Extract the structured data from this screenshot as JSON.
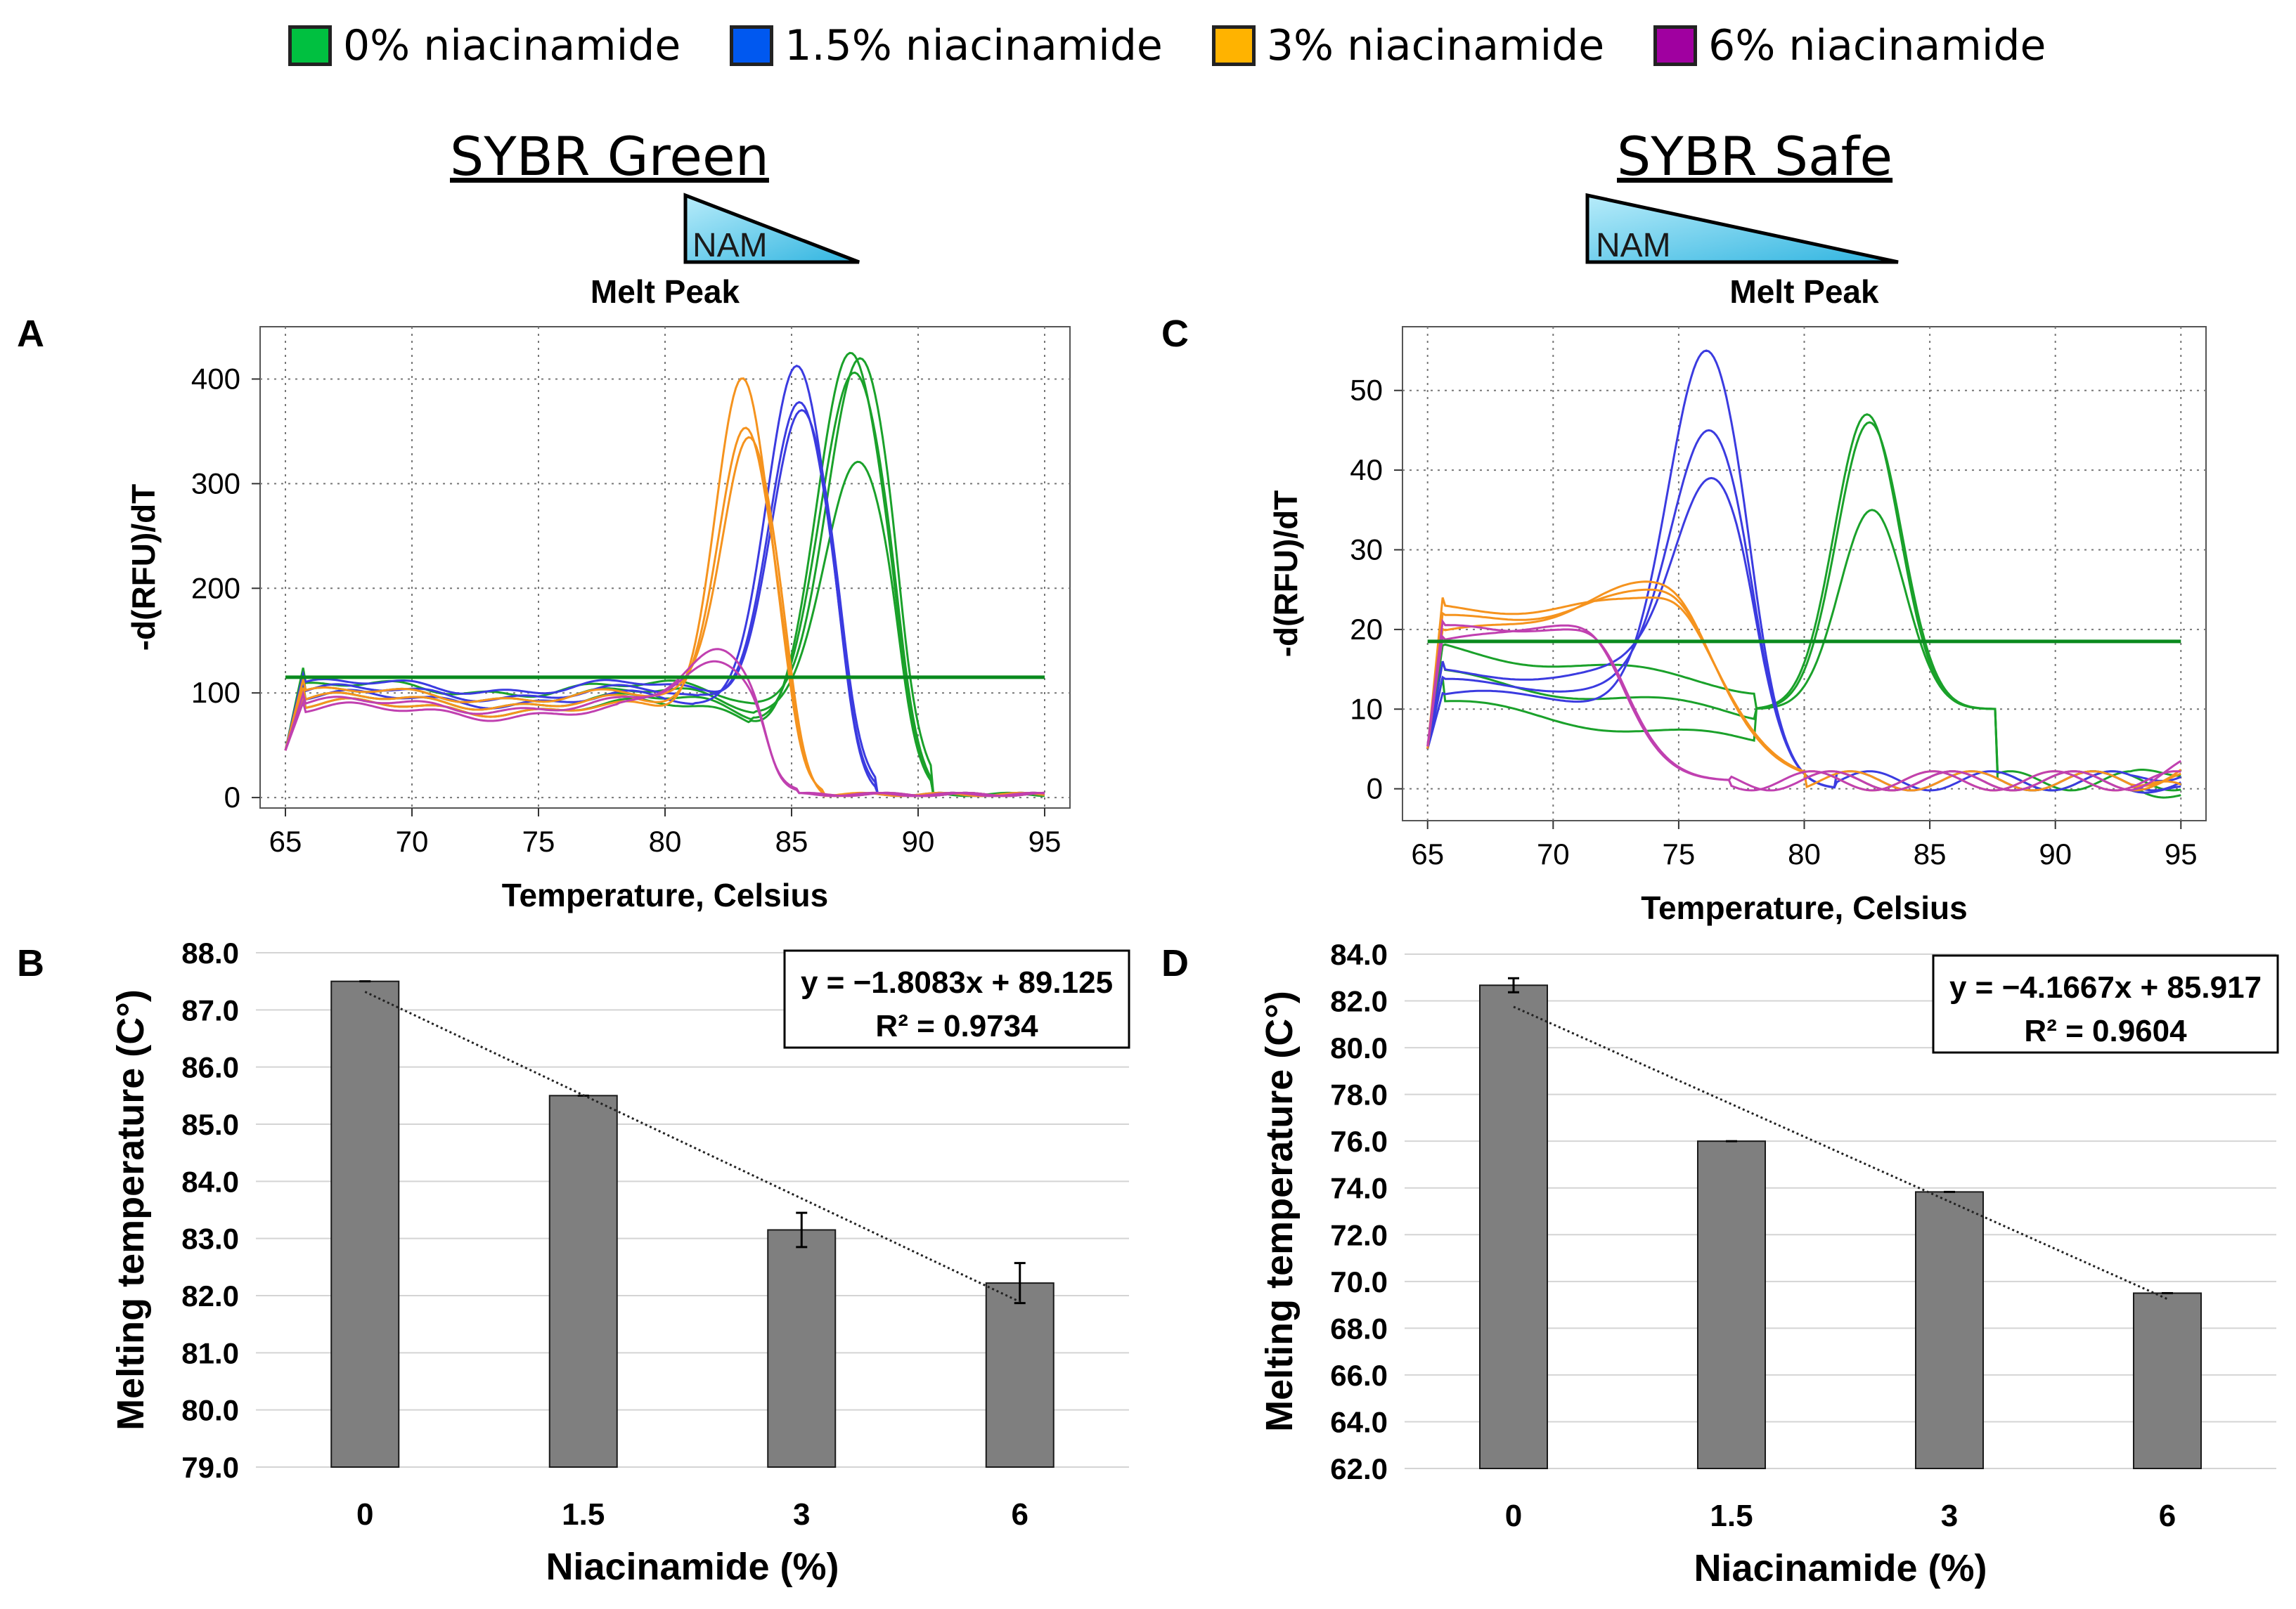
{
  "legend": [
    {
      "label": "0% niacinamide",
      "color": "#00c040"
    },
    {
      "label": "1.5% niacinamide",
      "color": "#0058f0"
    },
    {
      "label": "3% niacinamide",
      "color": "#ffb300"
    },
    {
      "label": "6% niacinamide",
      "color": "#a000a0"
    }
  ],
  "panels": {
    "left_title": "SYBR Green",
    "right_title": "SYBR Safe",
    "nam_label": "NAM",
    "letters": [
      "A",
      "B",
      "C",
      "D"
    ]
  },
  "chart_data": [
    {
      "id": "A",
      "type": "line",
      "title": "Melt Peak",
      "xlabel": "Temperature, Celsius",
      "ylabel": "-d(RFU)/dT",
      "xlim": [
        64,
        96
      ],
      "ylim": [
        -10,
        450
      ],
      "xticks": [
        65,
        70,
        75,
        80,
        85,
        90,
        95
      ],
      "yticks": [
        0,
        100,
        200,
        300,
        400
      ],
      "grid": true,
      "threshold": 115,
      "threshold_color": "#0a8a1e",
      "series": [
        {
          "name": "0% niacinamide",
          "color": "#1aa12a",
          "baseline": 95,
          "start": 112,
          "peak_x": 87.5,
          "peaks": [
            440,
            415,
            320,
            410
          ],
          "sigma": 1.3,
          "dip": 15
        },
        {
          "name": "1.5% niacinamide",
          "color": "#3b3be0",
          "baseline": 100,
          "start": 110,
          "peak_x": 85.3,
          "peaks": [
            425,
            382,
            370
          ],
          "sigma": 1.2,
          "dip": 10
        },
        {
          "name": "3% niacinamide",
          "color": "#f5931e",
          "baseline": 92,
          "start": 105,
          "peak_x": 83.2,
          "peaks": [
            410,
            360,
            345
          ],
          "sigma": 1.05,
          "dip": 5
        },
        {
          "name": "6% niacinamide",
          "color": "#c040b0",
          "baseline": 85,
          "start": 95,
          "peak_x": 82.2,
          "peaks": [
            142,
            125
          ],
          "sigma": 1.4,
          "dip": 0
        }
      ]
    },
    {
      "id": "B",
      "type": "bar",
      "xlabel": "Niacinamide (%)",
      "ylabel": "Melting temperature (C°)",
      "categories": [
        "0",
        "1.5",
        "3",
        "6"
      ],
      "values": [
        87.5,
        85.5,
        83.15,
        82.22
      ],
      "errors": [
        0.0,
        0.0,
        0.3,
        0.35
      ],
      "ylim": [
        79.0,
        88.0
      ],
      "yticks": [
        79.0,
        80.0,
        81.0,
        82.0,
        83.0,
        84.0,
        85.0,
        86.0,
        87.0,
        88.0
      ],
      "trend": {
        "slope": -1.8083,
        "intercept": 89.125
      },
      "equation": "y = −1.8083x + 89.125",
      "r2": "R² = 0.9734"
    },
    {
      "id": "C",
      "type": "line",
      "title": "Melt Peak",
      "xlabel": "Temperature, Celsius",
      "ylabel": "-d(RFU)/dT",
      "xlim": [
        64,
        96
      ],
      "ylim": [
        -4,
        58
      ],
      "xticks": [
        65,
        70,
        75,
        80,
        85,
        90,
        95
      ],
      "yticks": [
        0,
        10,
        20,
        30,
        40,
        50
      ],
      "grid": true,
      "threshold": 18.5,
      "threshold_color": "#0a8a1e",
      "series": [
        {
          "name": "0% niacinamide",
          "color": "#1aa12a",
          "baseline": 14,
          "start": 16,
          "peak_x": 82.6,
          "peaks": [
            47,
            46,
            35
          ],
          "sigma": 1.3,
          "drop_x": 76,
          "low": 9
        },
        {
          "name": "1.5% niacinamide",
          "color": "#3b3be0",
          "baseline": 13,
          "start": 14,
          "peak_x": 76.2,
          "peaks": [
            55,
            45,
            39
          ],
          "sigma": 1.5,
          "drop_x": 0,
          "low": 0
        },
        {
          "name": "3% niacinamide",
          "color": "#f5931e",
          "baseline": 21,
          "start": 22,
          "peak_x": 73.8,
          "peaks": [
            26,
            25,
            24
          ],
          "sigma": 2.5,
          "drop_x": 75,
          "low": 1
        },
        {
          "name": "6% niacinamide",
          "color": "#c040b0",
          "baseline": 19,
          "start": 20,
          "peak_x": 70.5,
          "peaks": [
            20.5,
            20
          ],
          "sigma": 2.0,
          "drop_x": 72,
          "low": 1
        }
      ]
    },
    {
      "id": "D",
      "type": "bar",
      "xlabel": "Niacinamide (%)",
      "ylabel": "Melting temperature (C°)",
      "categories": [
        "0",
        "1.5",
        "3",
        "6"
      ],
      "values": [
        82.67,
        76.0,
        73.83,
        69.5
      ],
      "errors": [
        0.3,
        0.0,
        0.0,
        0.0
      ],
      "ylim": [
        62.0,
        84.0
      ],
      "yticks": [
        62.0,
        64.0,
        66.0,
        68.0,
        70.0,
        72.0,
        74.0,
        76.0,
        78.0,
        80.0,
        82.0,
        84.0
      ],
      "trend": {
        "slope": -4.1667,
        "intercept": 85.917
      },
      "equation": "y = −4.1667x + 85.917",
      "r2": "R² = 0.9604"
    }
  ]
}
